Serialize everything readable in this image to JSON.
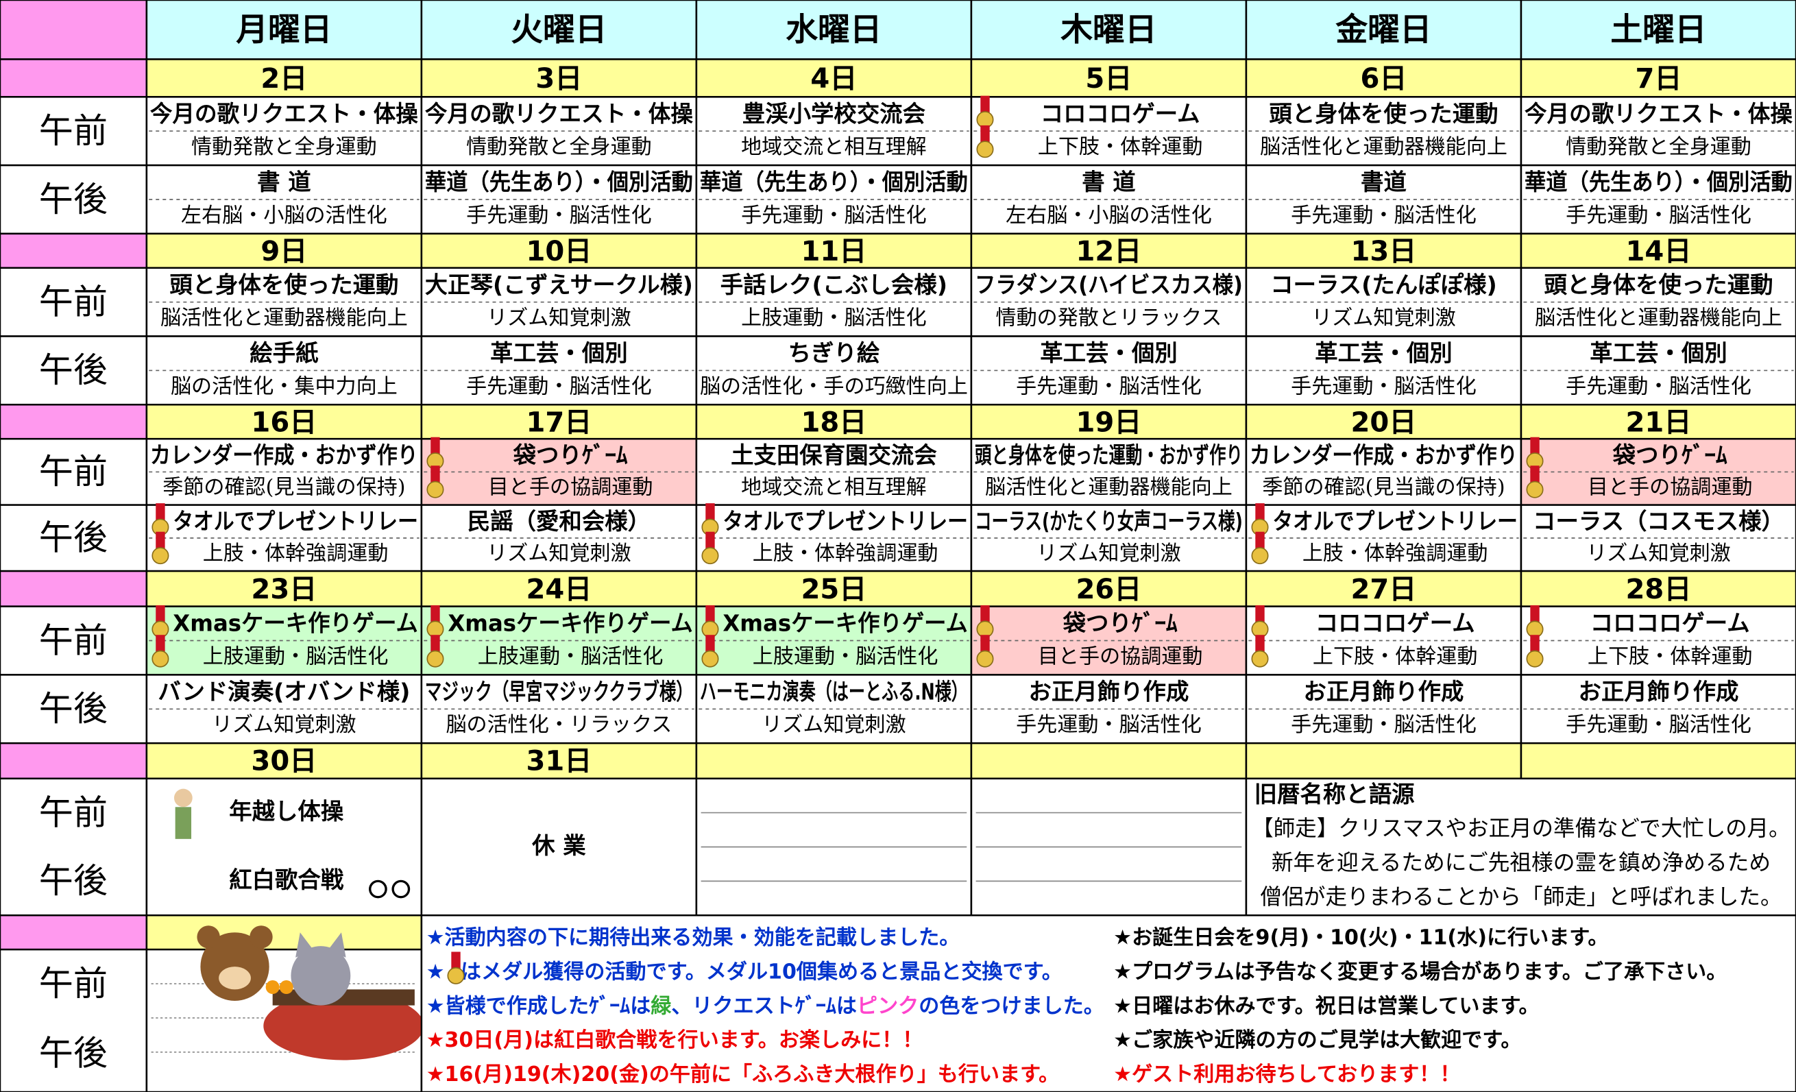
{
  "days": [
    "月曜日",
    "火曜日",
    "水曜日",
    "木曜日",
    "金曜日",
    "土曜日"
  ],
  "labels": {
    "am": "午前",
    "pm": "午後"
  },
  "weeks": [
    {
      "dates": [
        "2日",
        "3日",
        "4日",
        "5日",
        "6日",
        "7日"
      ],
      "am": [
        {
          "title": "今月の歌リクエスト・体操",
          "effect": "情動発散と全身運動"
        },
        {
          "title": "今月の歌リクエスト・体操",
          "effect": "情動発散と全身運動"
        },
        {
          "title": "豊渓小学校交流会",
          "effect": "地域交流と相互理解"
        },
        {
          "title": "コロコロゲーム",
          "effect": "上下肢・体幹運動",
          "medal": true
        },
        {
          "title": "頭と身体を使った運動",
          "effect": "脳活性化と運動器機能向上"
        },
        {
          "title": "今月の歌リクエスト・体操",
          "effect": "情動発散と全身運動"
        }
      ],
      "pm": [
        {
          "title": "書 道",
          "effect": "左右脳・小脳の活性化"
        },
        {
          "title": "華道（先生あり）・個別活動",
          "effect": "手先運動・脳活性化"
        },
        {
          "title": "華道（先生あり）・個別活動",
          "effect": "手先運動・脳活性化"
        },
        {
          "title": "書 道",
          "effect": "左右脳・小脳の活性化"
        },
        {
          "title": "書道",
          "effect": "手先運動・脳活性化"
        },
        {
          "title": "華道（先生あり）・個別活動",
          "effect": "手先運動・脳活性化"
        }
      ]
    },
    {
      "dates": [
        "9日",
        "10日",
        "11日",
        "12日",
        "13日",
        "14日"
      ],
      "am": [
        {
          "title": "頭と身体を使った運動",
          "effect": "脳活性化と運動器機能向上"
        },
        {
          "title": "大正琴(こずえサークル様)",
          "effect": "リズム知覚刺激"
        },
        {
          "title": "手話レク(こぶし会様)",
          "effect": "上肢運動・脳活性化"
        },
        {
          "title": "フラダンス(ハイビスカス様)",
          "effect": "情動の発散とリラックス"
        },
        {
          "title": "コーラス(たんぽぽ様)",
          "effect": "リズム知覚刺激"
        },
        {
          "title": "頭と身体を使った運動",
          "effect": "脳活性化と運動器機能向上"
        }
      ],
      "pm": [
        {
          "title": "絵手紙",
          "effect": "脳の活性化・集中力向上"
        },
        {
          "title": "革工芸・個別",
          "effect": "手先運動・脳活性化"
        },
        {
          "title": "ちぎり絵",
          "effect": "脳の活性化・手の巧緻性向上"
        },
        {
          "title": "革工芸・個別",
          "effect": "手先運動・脳活性化"
        },
        {
          "title": "革工芸・個別",
          "effect": "手先運動・脳活性化"
        },
        {
          "title": "革工芸・個別",
          "effect": "手先運動・脳活性化"
        }
      ]
    },
    {
      "dates": [
        "16日",
        "17日",
        "18日",
        "19日",
        "20日",
        "21日"
      ],
      "am": [
        {
          "title": "カレンダー作成・おかず作り",
          "effect": "季節の確認(見当識の保持)"
        },
        {
          "title": "袋つりｹﾞｰﾑ",
          "effect": "目と手の協調運動",
          "medal": true,
          "bg": "#ffcccc"
        },
        {
          "title": "土支田保育園交流会",
          "effect": "地域交流と相互理解"
        },
        {
          "title": "頭と身体を使った運動・おかず作り",
          "effect": "脳活性化と運動器機能向上"
        },
        {
          "title": "カレンダー作成・おかず作り",
          "effect": "季節の確認(見当識の保持)"
        },
        {
          "title": "袋つりｹﾞｰﾑ",
          "effect": "目と手の協調運動",
          "medal": true,
          "bg": "#ffcccc"
        }
      ],
      "pm": [
        {
          "title": "タオルでプレゼントリレー",
          "effect": "上肢・体幹強調運動",
          "medal": true
        },
        {
          "title": "民謡（愛和会様）",
          "effect": "リズム知覚刺激"
        },
        {
          "title": "タオルでプレゼントリレー",
          "effect": "上肢・体幹強調運動",
          "medal": true
        },
        {
          "title": "コーラス(かたくり女声コーラス様)",
          "effect": "リズム知覚刺激"
        },
        {
          "title": "タオルでプレゼントリレー",
          "effect": "上肢・体幹強調運動",
          "medal": true
        },
        {
          "title": "コーラス（コスモス様）",
          "effect": "リズム知覚刺激"
        }
      ]
    },
    {
      "dates": [
        "23日",
        "24日",
        "25日",
        "26日",
        "27日",
        "28日"
      ],
      "am": [
        {
          "title": "Xmasケーキ作りゲーム",
          "effect": "上肢運動・脳活性化",
          "medal": true,
          "bg": "#ccffcc"
        },
        {
          "title": "Xmasケーキ作りゲーム",
          "effect": "上肢運動・脳活性化",
          "medal": true,
          "bg": "#ccffcc"
        },
        {
          "title": "Xmasケーキ作りゲーム",
          "effect": "上肢運動・脳活性化",
          "medal": true,
          "bg": "#ccffcc"
        },
        {
          "title": "袋つりｹﾞｰﾑ",
          "effect": "目と手の協調運動",
          "medal": true,
          "bg": "#ffcccc"
        },
        {
          "title": "コロコロゲーム",
          "effect": "上下肢・体幹運動",
          "medal": true
        },
        {
          "title": "コロコロゲーム",
          "effect": "上下肢・体幹運動",
          "medal": true
        }
      ],
      "pm": [
        {
          "title": "バンド演奏(オバンド様)",
          "effect": "リズム知覚刺激"
        },
        {
          "title": "マジック（早宮マジッククラブ様）",
          "effect": "脳の活性化・リラックス"
        },
        {
          "title": "ハーモニカ演奏（はーとふる.N様）",
          "effect": "リズム知覚刺激"
        },
        {
          "title": "お正月飾り作成",
          "effect": "手先運動・脳活性化"
        },
        {
          "title": "お正月飾り作成",
          "effect": "手先運動・脳活性化"
        },
        {
          "title": "お正月飾り作成",
          "effect": "手先運動・脳活性化"
        }
      ]
    }
  ],
  "last_week": {
    "dates": [
      "30日",
      "31日"
    ],
    "am": "年越し体操",
    "pm": "紅白歌合戦",
    "closed": "休 業"
  },
  "lunar": {
    "title": "旧暦名称と語源",
    "lines": [
      "【師走】クリスマスやお正月の準備などで大忙しの月。",
      "新年を迎えるためにご先祖様の霊を鎮め浄めるため",
      "僧侶が走りまわることから「師走」と呼ばれました。"
    ]
  },
  "notes_left": [
    [
      {
        "text": "★活動内容の下に期待出来る効果・効能を記載しました。",
        "color": "#0033cc"
      }
    ],
    [
      {
        "text": "★",
        "color": "#0033cc"
      },
      {
        "text": "はメダル獲得の活動です。メダル10個集めると景品と交換です。",
        "color": "#0033cc"
      }
    ],
    [
      {
        "text": "★皆様で作成したｹﾞｰﾑは",
        "color": "#0033cc"
      },
      {
        "text": "緑",
        "color": "#33aa33"
      },
      {
        "text": "、リクエストｹﾞｰﾑは",
        "color": "#0033cc"
      },
      {
        "text": "ピンク",
        "color": "#ff44cc"
      },
      {
        "text": "の色をつけました。",
        "color": "#0033cc"
      }
    ],
    [
      {
        "text": "★30日(月)は紅白歌合戦を行います。お楽しみに！！",
        "color": "#ee0000"
      }
    ],
    [
      {
        "text": "★16(月)19(木)20(金)の午前に「ふろふき大根作り」も行います。",
        "color": "#ee0000"
      }
    ]
  ],
  "notes_right": [
    [
      {
        "text": "★お誕生日会を9(月)・10(火)・11(水)に行います。",
        "color": "#000000"
      }
    ],
    [
      {
        "text": "★プログラムは予告なく変更する場合があります。ご了承下さい。",
        "color": "#000000"
      }
    ],
    [
      {
        "text": "★日曜はお休みです。祝日は営業しています。",
        "color": "#000000"
      }
    ],
    [
      {
        "text": "★ご家族や近隣の方のご見学は大歓迎です。",
        "color": "#000000"
      }
    ],
    [
      {
        "text": "★ゲスト利用お待ちしております！！",
        "color": "#ee0000"
      }
    ]
  ]
}
